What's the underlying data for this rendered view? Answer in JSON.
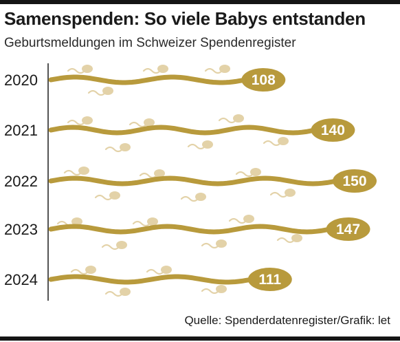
{
  "header": {
    "title": "Samenspenden: So viele Babys entstanden",
    "subtitle": "Geburtsmeldungen im Schweizer Spendenregister"
  },
  "footer": {
    "source": "Quelle: Spenderdatenregister/Grafik: let"
  },
  "colors": {
    "main_sperm": "#b89a3c",
    "small_sperm": "#e3d2a8",
    "label_text": "#ffffff",
    "axis": "#1a1a1a"
  },
  "chart_data": {
    "type": "bar",
    "title": "Samenspenden: So viele Babys entstanden",
    "subtitle": "Geburtsmeldungen im Schweizer Spendenregister",
    "categories": [
      "2020",
      "2021",
      "2022",
      "2023",
      "2024"
    ],
    "values": [
      108,
      140,
      150,
      147,
      111
    ],
    "orientation": "horizontal",
    "data_labels": true,
    "grid": false,
    "legend": "none"
  }
}
